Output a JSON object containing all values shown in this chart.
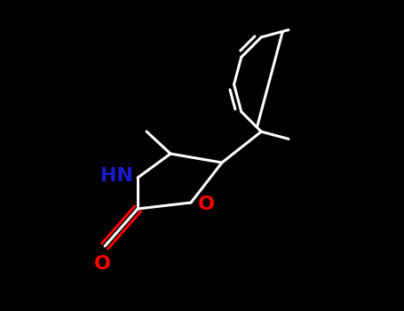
{
  "background_color": "#000000",
  "bond_color": "#ffffff",
  "N_color": "#1a1acd",
  "O_color": "#ff0000",
  "line_width": 2.2,
  "figsize": [
    4.55,
    3.5
  ],
  "dpi": 100,
  "xlim": [
    0,
    10
  ],
  "ylim": [
    0,
    7.7
  ],
  "ring_O_label": "O",
  "carbonyl_O_label": "O",
  "N_label": "HN",
  "font_size": 16
}
